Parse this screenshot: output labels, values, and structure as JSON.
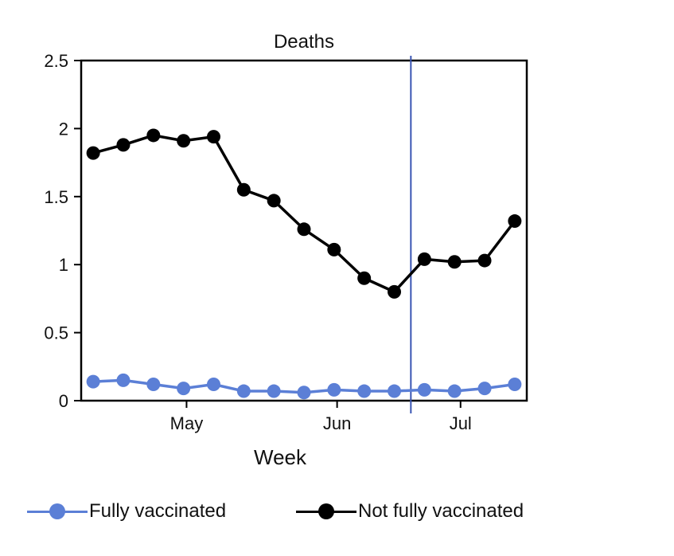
{
  "chart_data": {
    "type": "line",
    "title": "Deaths",
    "xlabel": "Week",
    "ylabel": "",
    "ylim": [
      0,
      2.5
    ],
    "yticks": [
      0,
      0.5,
      1,
      1.5,
      2,
      2.5
    ],
    "ytick_labels": [
      "0",
      "0.5",
      "1",
      "1.5",
      "2",
      "2.5"
    ],
    "x_week_index": [
      0,
      1,
      2,
      3,
      4,
      5,
      6,
      7,
      8,
      9,
      10,
      11,
      12,
      13,
      14
    ],
    "xlim": [
      -0.4,
      14.4
    ],
    "xticks": [
      {
        "label": "May",
        "at": 3.1
      },
      {
        "label": "Jun",
        "at": 8.1
      },
      {
        "label": "Jul",
        "at": 12.2
      }
    ],
    "reference_line_at": 10.55,
    "series": [
      {
        "name": "Fully vaccinated",
        "color": "#5b7fd6",
        "values": [
          0.14,
          0.15,
          0.12,
          0.09,
          0.12,
          0.07,
          0.07,
          0.06,
          0.08,
          0.07,
          0.07,
          0.08,
          0.07,
          0.09,
          0.12
        ]
      },
      {
        "name": "Not fully vaccinated",
        "color": "#000000",
        "values": [
          1.82,
          1.88,
          1.95,
          1.91,
          1.94,
          1.55,
          1.47,
          1.26,
          1.11,
          0.9,
          0.8,
          1.04,
          1.02,
          1.03,
          1.32
        ]
      }
    ],
    "reference_line_color": "#3a55b4",
    "legend_position": "bottom"
  }
}
